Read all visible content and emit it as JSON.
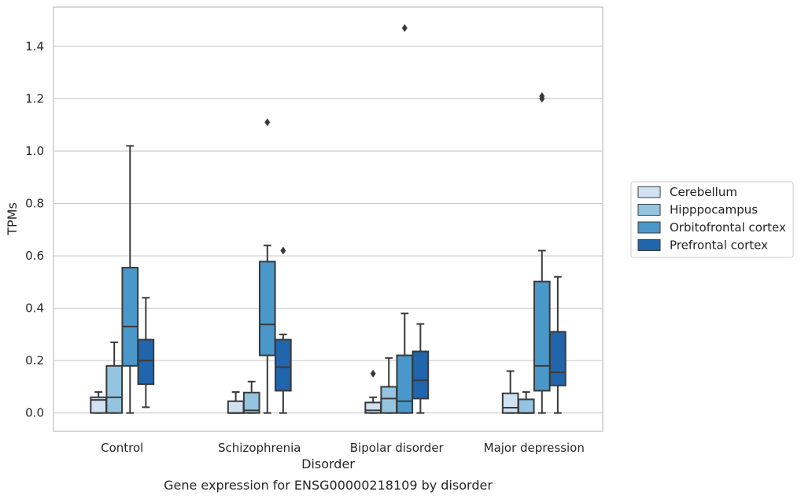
{
  "chart_data": {
    "type": "box",
    "title": "",
    "caption": "Gene expression for ENSG00000218109 by disorder",
    "xlabel": "Disorder",
    "ylabel": "TPMs",
    "ylim": [
      -0.07,
      1.55
    ],
    "yticks": [
      "0.0",
      "0.2",
      "0.4",
      "0.6",
      "0.8",
      "1.0",
      "1.2",
      "1.4"
    ],
    "categories": [
      "Control",
      "Schizophrenia",
      "Bipolar disorder",
      "Major depression"
    ],
    "grid": "horizontal",
    "legend_position": "right",
    "series": [
      {
        "name": "Cerebellum",
        "color": "#d0e1f2",
        "boxes": [
          {
            "whislo": 0.0,
            "q1": 0.0,
            "med": 0.05,
            "q3": 0.06,
            "whishi": 0.08,
            "fliers": []
          },
          {
            "whislo": 0.0,
            "q1": 0.0,
            "med": 0.0,
            "q3": 0.045,
            "whishi": 0.08,
            "fliers": []
          },
          {
            "whislo": 0.0,
            "q1": 0.0,
            "med": 0.01,
            "q3": 0.04,
            "whishi": 0.06,
            "fliers": [
              0.15
            ]
          },
          {
            "whislo": 0.0,
            "q1": 0.0,
            "med": 0.02,
            "q3": 0.075,
            "whishi": 0.16,
            "fliers": []
          }
        ]
      },
      {
        "name": "Hipppocampus",
        "color": "#94c4df",
        "boxes": [
          {
            "whislo": 0.0,
            "q1": 0.0,
            "med": 0.06,
            "q3": 0.18,
            "whishi": 0.27,
            "fliers": []
          },
          {
            "whislo": 0.0,
            "q1": 0.0,
            "med": 0.01,
            "q3": 0.078,
            "whishi": 0.12,
            "fliers": []
          },
          {
            "whislo": 0.0,
            "q1": 0.0,
            "med": 0.055,
            "q3": 0.1,
            "whishi": 0.21,
            "fliers": []
          },
          {
            "whislo": 0.0,
            "q1": 0.0,
            "med": 0.0,
            "q3": 0.052,
            "whishi": 0.08,
            "fliers": []
          }
        ]
      },
      {
        "name": "Orbitofrontal cortex",
        "color": "#4a98c9",
        "boxes": [
          {
            "whislo": 0.0,
            "q1": 0.18,
            "med": 0.33,
            "q3": 0.555,
            "whishi": 1.02,
            "fliers": []
          },
          {
            "whislo": 0.0,
            "q1": 0.22,
            "med": 0.338,
            "q3": 0.578,
            "whishi": 0.64,
            "fliers": [
              1.11
            ]
          },
          {
            "whislo": 0.0,
            "q1": 0.0,
            "med": 0.045,
            "q3": 0.22,
            "whishi": 0.38,
            "fliers": [
              1.47
            ]
          },
          {
            "whislo": 0.0,
            "q1": 0.085,
            "med": 0.18,
            "q3": 0.502,
            "whishi": 0.62,
            "fliers": [
              1.2,
              1.21
            ]
          }
        ]
      },
      {
        "name": "Prefrontal cortex",
        "color": "#2166ac",
        "boxes": [
          {
            "whislo": 0.022,
            "q1": 0.11,
            "med": 0.2,
            "q3": 0.28,
            "whishi": 0.44,
            "fliers": []
          },
          {
            "whislo": 0.0,
            "q1": 0.085,
            "med": 0.175,
            "q3": 0.28,
            "whishi": 0.3,
            "fliers": [
              0.62
            ]
          },
          {
            "whislo": 0.0,
            "q1": 0.055,
            "med": 0.125,
            "q3": 0.235,
            "whishi": 0.34,
            "fliers": []
          },
          {
            "whislo": 0.0,
            "q1": 0.105,
            "med": 0.155,
            "q3": 0.31,
            "whishi": 0.52,
            "fliers": []
          }
        ]
      }
    ]
  }
}
